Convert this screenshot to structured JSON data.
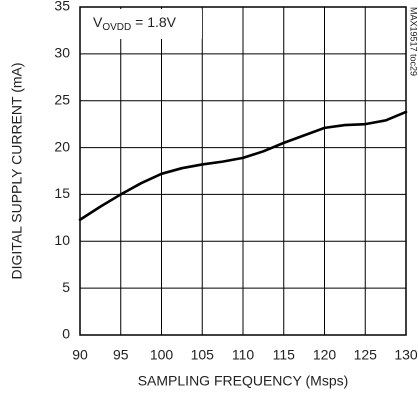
{
  "chart_data": {
    "type": "line",
    "annotation": {
      "main": "V",
      "sub": "OVDD",
      "rest": " = 1.8V"
    },
    "note": "MAX19517 toc29",
    "x_label": "SAMPLING FREQUENCY (Msps)",
    "y_label": "DIGITAL SUPPLY CURRENT (mA)",
    "x": [
      90,
      92.5,
      95,
      97.5,
      100,
      102.5,
      105,
      107.5,
      110,
      112.5,
      115,
      117.5,
      120,
      122.5,
      125,
      127.5,
      130
    ],
    "series": [
      {
        "color": "#000000",
        "values": [
          12.3,
          13.7,
          15.0,
          16.2,
          17.2,
          17.8,
          18.2,
          18.5,
          18.9,
          19.6,
          20.5,
          21.3,
          22.1,
          22.4,
          22.5,
          22.9,
          23.8
        ]
      }
    ],
    "xlim": [
      90,
      130
    ],
    "xticks": [
      90,
      95,
      100,
      105,
      110,
      115,
      120,
      125,
      130
    ],
    "ylim": [
      0,
      35
    ],
    "yticks": [
      0,
      5,
      10,
      15,
      20,
      25,
      30,
      35
    ],
    "grid": true
  }
}
